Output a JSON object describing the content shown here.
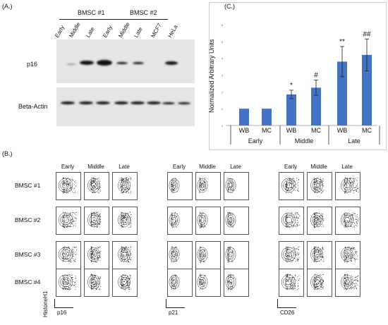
{
  "panel_a": {
    "label": "(A.)",
    "group1": "BMSC #1",
    "group2": "BMSC #2",
    "lanes": [
      "Early",
      "Middle",
      "Late",
      "Early",
      "Middle",
      "Late",
      "MCF7",
      "HeLa"
    ],
    "row1": "p16",
    "row2": "Beta-Actin"
  },
  "panel_b": {
    "label": "(B.)",
    "columns": [
      "Early",
      "Middle",
      "Late"
    ],
    "rows": [
      "BMSC #1",
      "BMSC #2",
      "BMSC #3",
      "BMSC #4"
    ],
    "y_axis": "HistoneH1",
    "markers": [
      "p16",
      "p21",
      "CD26"
    ]
  },
  "panel_c": {
    "label": "(C.)",
    "ylabel": "Normalized Arbitrary Units",
    "groups": [
      "Early",
      "Middle",
      "Late"
    ]
  },
  "chart_data": {
    "type": "bar",
    "title": "",
    "ylabel": "Normalized Arbitrary Units",
    "ylim": [
      0,
      6
    ],
    "yticks": [
      "0",
      "1",
      "2",
      "3",
      "4",
      "5",
      "6"
    ],
    "categories": [
      "WB",
      "MC",
      "WB",
      "MC",
      "WB",
      "MC"
    ],
    "groups": [
      "Early",
      "Early",
      "Middle",
      "Middle",
      "Late",
      "Late"
    ],
    "values": [
      1.0,
      1.0,
      1.85,
      2.25,
      3.8,
      4.2
    ],
    "errors": [
      0,
      0,
      0.25,
      0.45,
      0.9,
      0.95
    ],
    "annotations": [
      "",
      "",
      "*",
      "#",
      "**",
      "##"
    ],
    "color": "#4472C4",
    "grid": false
  }
}
